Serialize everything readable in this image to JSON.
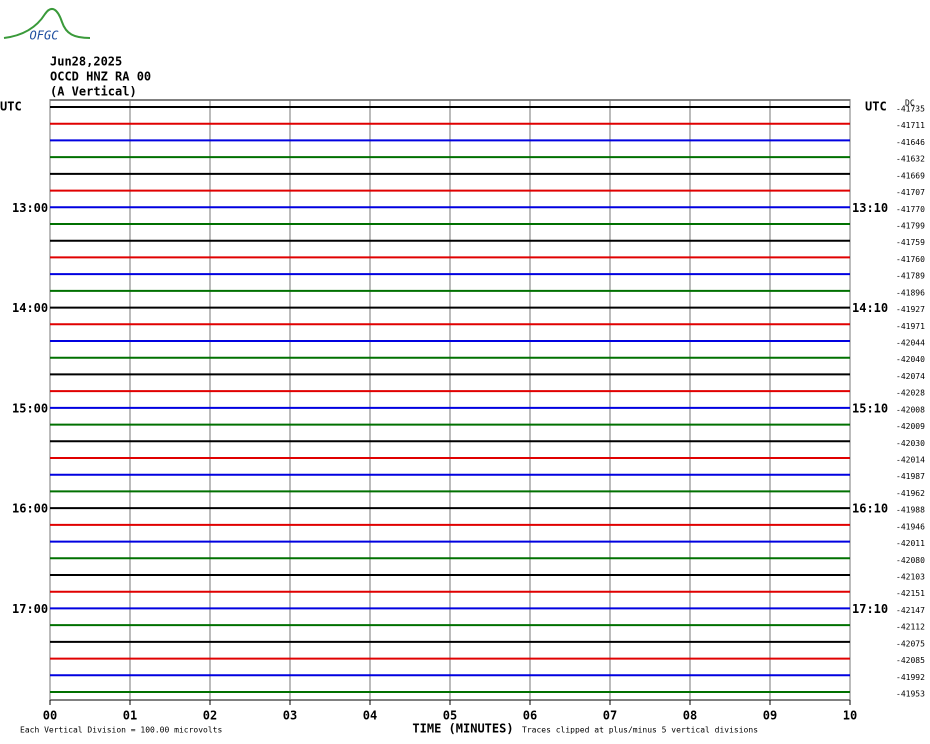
{
  "header": {
    "logo": "OFGC",
    "date": "Jun28,2025",
    "station": "OCCD HNZ RA 00",
    "component": "(A Vertical)",
    "left_zone": "UTC",
    "right_zone": "UTC",
    "offset_header": "DC"
  },
  "colors": [
    "#000000",
    "#e00000",
    "#0000e0",
    "#007000"
  ],
  "traces": [
    {
      "offset": "-41735"
    },
    {
      "offset": "-41711"
    },
    {
      "offset": "-41646"
    },
    {
      "offset": "-41632"
    },
    {
      "offset": "-41669"
    },
    {
      "offset": "-41707"
    },
    {
      "offset": "-41770",
      "left": "13:00",
      "right": "13:10"
    },
    {
      "offset": "-41799"
    },
    {
      "offset": "-41759"
    },
    {
      "offset": "-41760"
    },
    {
      "offset": "-41789"
    },
    {
      "offset": "-41896"
    },
    {
      "offset": "-41927",
      "left": "14:00",
      "right": "14:10"
    },
    {
      "offset": "-41971"
    },
    {
      "offset": "-42044"
    },
    {
      "offset": "-42040"
    },
    {
      "offset": "-42074"
    },
    {
      "offset": "-42028"
    },
    {
      "offset": "-42008",
      "left": "15:00",
      "right": "15:10"
    },
    {
      "offset": "-42009"
    },
    {
      "offset": "-42030"
    },
    {
      "offset": "-42014"
    },
    {
      "offset": "-41987"
    },
    {
      "offset": "-41962"
    },
    {
      "offset": "-41988",
      "left": "16:00",
      "right": "16:10"
    },
    {
      "offset": "-41946"
    },
    {
      "offset": "-42011"
    },
    {
      "offset": "-42080"
    },
    {
      "offset": "-42103"
    },
    {
      "offset": "-42151"
    },
    {
      "offset": "-42147",
      "left": "17:00",
      "right": "17:10"
    },
    {
      "offset": "-42112"
    },
    {
      "offset": "-42075"
    },
    {
      "offset": "-42085"
    },
    {
      "offset": "-41992"
    },
    {
      "offset": "-41953"
    }
  ],
  "x_axis": {
    "title": "TIME (MINUTES)",
    "xlim": [
      0,
      10
    ],
    "xticks": [
      {
        "value": 0,
        "label": "00"
      },
      {
        "value": 1,
        "label": "01"
      },
      {
        "value": 2,
        "label": "02"
      },
      {
        "value": 3,
        "label": "03"
      },
      {
        "value": 4,
        "label": "04"
      },
      {
        "value": 5,
        "label": "05"
      },
      {
        "value": 6,
        "label": "06"
      },
      {
        "value": 7,
        "label": "07"
      },
      {
        "value": 8,
        "label": "08"
      },
      {
        "value": 9,
        "label": "09"
      },
      {
        "value": 10,
        "label": "10"
      }
    ]
  },
  "footer": {
    "scale_note": "Each Vertical Division =  100.00 microvolts",
    "clip_note": "Traces clipped at plus/minus 5 vertical divisions"
  }
}
